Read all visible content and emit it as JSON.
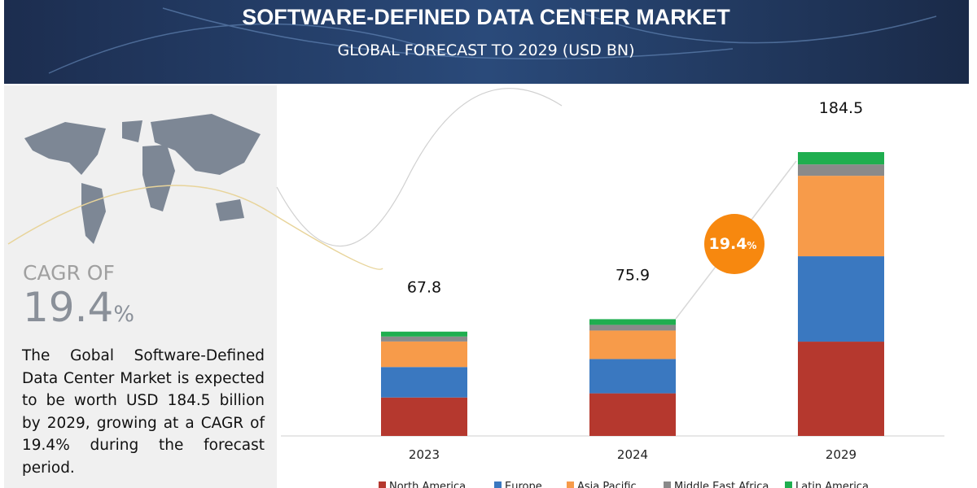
{
  "header": {
    "title": "SOFTWARE-DEFINED DATA CENTER MARKET",
    "subtitle": "GLOBAL FORECAST TO 2029 (USD BN)"
  },
  "cagr": {
    "label": "CAGR OF",
    "value": "19.4",
    "unit": "%"
  },
  "description": "The Gobal Software-Defined Data Center Market is expected to be worth USD 184.5 billion by 2029, growing at a CAGR of 19.4% during the forecast period.",
  "chart_data": {
    "type": "stacked_bar",
    "categories": [
      "2023",
      "2024",
      "2029"
    ],
    "series": [
      {
        "name": "North America",
        "color": "#b5382e",
        "values": [
          25.0,
          27.7,
          61.3
        ]
      },
      {
        "name": "Europe",
        "color": "#3a78c0",
        "values": [
          19.8,
          22.3,
          55.5
        ]
      },
      {
        "name": "Asia Pacific",
        "color": "#f79b4a",
        "values": [
          16.6,
          18.5,
          52.3
        ]
      },
      {
        "name": "Middle East Africa",
        "color": "#8a8a8a",
        "values": [
          3.2,
          3.7,
          7.4
        ]
      },
      {
        "name": "Latin America",
        "color": "#1fae4f",
        "values": [
          3.2,
          3.7,
          8.0
        ]
      }
    ],
    "totals": [
      67.8,
      75.9,
      184.5
    ],
    "annotation": {
      "value": "19.4",
      "unit": "%"
    }
  }
}
